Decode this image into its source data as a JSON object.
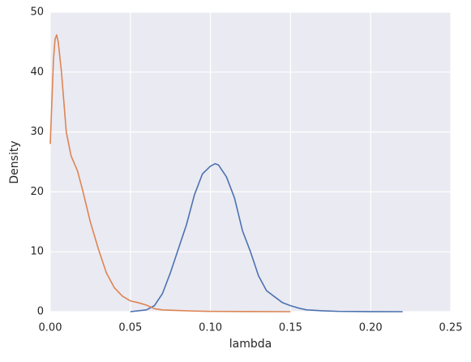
{
  "chart_data": {
    "type": "line",
    "xlabel": "lambda",
    "ylabel": "Density",
    "xlim": [
      0,
      0.25
    ],
    "ylim": [
      0,
      50
    ],
    "xticks": [
      {
        "value": 0,
        "label": "0.00"
      },
      {
        "value": 0.05,
        "label": "0.05"
      },
      {
        "value": 0.1,
        "label": "0.10"
      },
      {
        "value": 0.15,
        "label": "0.15"
      },
      {
        "value": 0.2,
        "label": "0.20"
      },
      {
        "value": 0.25,
        "label": "0.25"
      }
    ],
    "yticks": [
      0,
      10,
      20,
      30,
      40,
      50
    ],
    "grid": true,
    "series": [
      {
        "color": "#4c72b0",
        "x": [
          0.05,
          0.06,
          0.065,
          0.07,
          0.075,
          0.08,
          0.085,
          0.09,
          0.095,
          0.1,
          0.103,
          0.105,
          0.11,
          0.115,
          0.12,
          0.125,
          0.13,
          0.135,
          0.14,
          0.145,
          0.15,
          0.155,
          0.16,
          0.17,
          0.18,
          0.2,
          0.22
        ],
        "values": [
          0,
          0.3,
          1,
          3,
          6.5,
          10.5,
          14.5,
          19.5,
          23,
          24.3,
          24.7,
          24.5,
          22.5,
          19,
          13.5,
          10,
          6,
          3.5,
          2.5,
          1.5,
          1,
          0.6,
          0.3,
          0.15,
          0.05,
          0.01,
          0
        ]
      },
      {
        "color": "#dd8452",
        "x": [
          0,
          0.002,
          0.003,
          0.004,
          0.005,
          0.007,
          0.01,
          0.013,
          0.017,
          0.02,
          0.025,
          0.03,
          0.035,
          0.04,
          0.045,
          0.05,
          0.055,
          0.06,
          0.065,
          0.07,
          0.08,
          0.09,
          0.1,
          0.12,
          0.15
        ],
        "values": [
          28,
          42,
          45.5,
          46.2,
          45,
          40,
          30,
          26,
          23.5,
          20.5,
          15,
          10.5,
          6.5,
          4,
          2.6,
          1.8,
          1.5,
          1.1,
          0.5,
          0.3,
          0.2,
          0.1,
          0.05,
          0.02,
          0
        ]
      }
    ]
  }
}
